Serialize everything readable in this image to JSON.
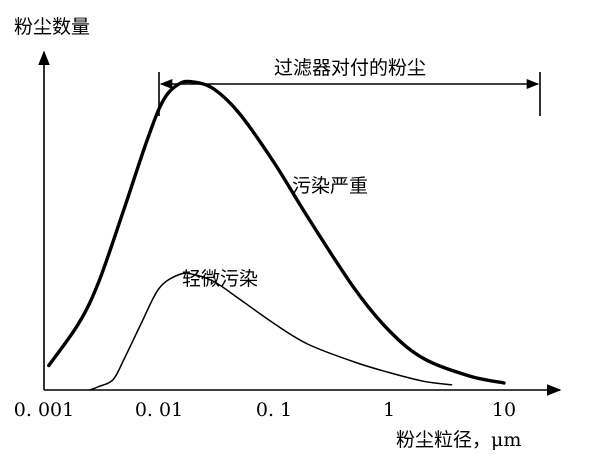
{
  "chart_data": {
    "type": "line",
    "ylabel": "粉尘数量",
    "xlabel": "粉尘粒径，μm",
    "x_scale": "log",
    "xlim": [
      0.001,
      10
    ],
    "x_ticks": [
      "0. 001",
      "0. 01",
      "0. 1",
      "1",
      "10"
    ],
    "x_tick_values": [
      0.001,
      0.01,
      0.1,
      1,
      10
    ],
    "ylim": [
      0,
      1
    ],
    "y_ticks": [],
    "grid": false,
    "legend": "none",
    "series": [
      {
        "name": "污染严重",
        "x": [
          0.0011,
          0.002,
          0.003,
          0.005,
          0.008,
          0.011,
          0.015,
          0.02,
          0.03,
          0.05,
          0.1,
          0.2,
          0.5,
          1,
          2,
          5,
          10
        ],
        "y": [
          0.07,
          0.19,
          0.31,
          0.52,
          0.72,
          0.83,
          0.875,
          0.88,
          0.86,
          0.79,
          0.65,
          0.49,
          0.29,
          0.17,
          0.09,
          0.04,
          0.02
        ]
      },
      {
        "name": "轻微污染",
        "x": [
          0.0025,
          0.003,
          0.004,
          0.005,
          0.007,
          0.01,
          0.015,
          0.02,
          0.03,
          0.05,
          0.1,
          0.2,
          0.5,
          1,
          2,
          3.5
        ],
        "y": [
          0.0,
          0.01,
          0.03,
          0.09,
          0.19,
          0.29,
          0.33,
          0.33,
          0.31,
          0.26,
          0.19,
          0.13,
          0.08,
          0.05,
          0.025,
          0.015
        ]
      }
    ],
    "annotations": [
      {
        "text": "过滤器对付的粉尘",
        "kind": "range-arrow",
        "x_from": 0.01,
        "x_to": 20
      },
      {
        "text": "污染严重",
        "series": "污染严重"
      },
      {
        "text": "轻微污染",
        "series": "轻微污染"
      }
    ]
  }
}
